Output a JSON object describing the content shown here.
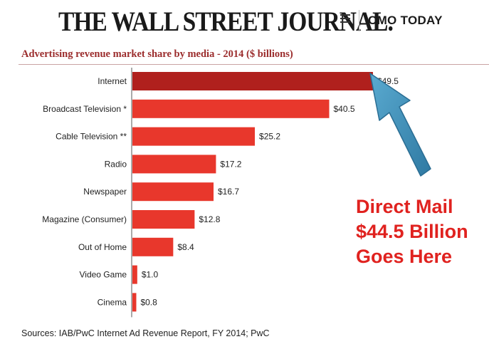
{
  "masthead": {
    "publication": "THE WALL STREET JOURNAL.",
    "section": "CMO TODAY",
    "menu_icon": "hamburger-menu-icon"
  },
  "annotation": {
    "lines": [
      "Direct Mail",
      "$44.5 Billion",
      "Goes Here"
    ],
    "color": "#e0221f",
    "arrow_color": "#3d90b8",
    "arrow_icon": "arrow-up-left-icon"
  },
  "source": "Sources: IAB/PwC Internet Ad Revenue Report, FY 2014; PwC",
  "colors": {
    "highlight_bar": "#b0201d",
    "bar": "#e8372c",
    "title": "#9b2c2c"
  },
  "chart_data": {
    "type": "bar",
    "orientation": "horizontal",
    "title": "Advertising revenue market share by media - 2014 ($ billions)",
    "xlabel": "",
    "ylabel": "",
    "xlim": [
      0,
      52
    ],
    "grid": false,
    "categories": [
      "Internet",
      "Broadcast Television *",
      "Cable Television **",
      "Radio",
      "Newspaper",
      "Magazine (Consumer)",
      "Out of Home",
      "Video Game",
      "Cinema"
    ],
    "values": [
      49.5,
      40.5,
      25.2,
      17.2,
      16.7,
      12.8,
      8.4,
      1.0,
      0.8
    ],
    "value_labels": [
      "$49.5",
      "$40.5",
      "$25.2",
      "$17.2",
      "$16.7",
      "$12.8",
      "$8.4",
      "$1.0",
      "$0.8"
    ],
    "highlighted_category": "Internet"
  }
}
